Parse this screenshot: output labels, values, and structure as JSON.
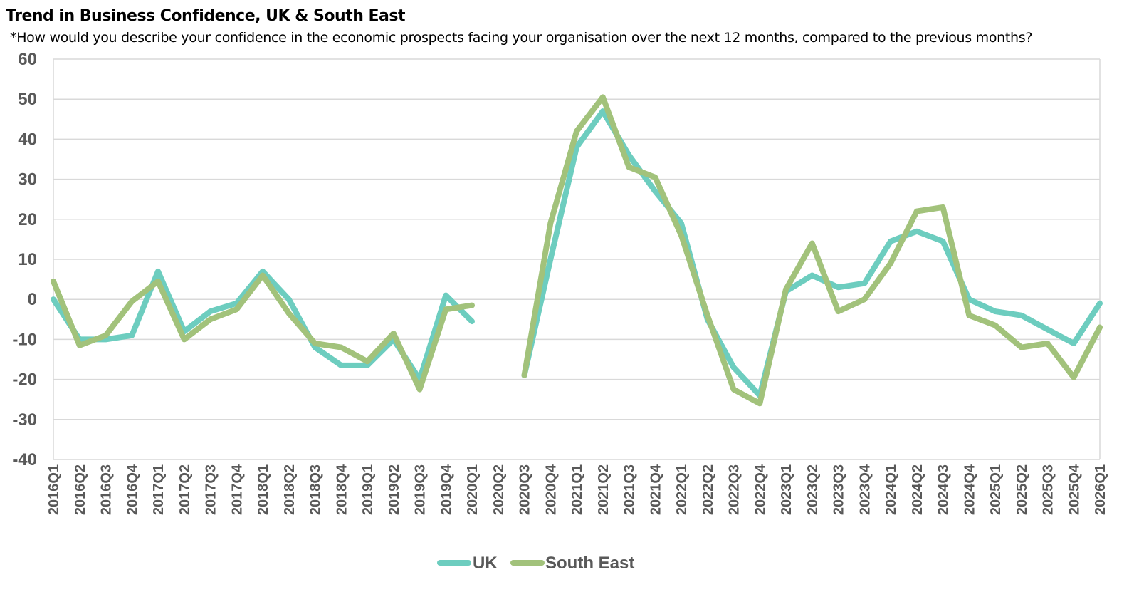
{
  "chart_data": {
    "type": "line",
    "title": "Trend in Business Confidence, UK & South East",
    "subtitle": "*How would you describe your confidence in the economic prospects facing your organisation over the next 12 months, compared to the previous months?",
    "xlabel": "",
    "ylabel": "",
    "ylim": [
      -40,
      60
    ],
    "yticks": [
      60,
      50,
      40,
      30,
      20,
      10,
      0,
      -10,
      -20,
      -30,
      -40
    ],
    "grid": true,
    "legend": "bottom-center",
    "categories": [
      "2016Q1",
      "2016Q2",
      "2016Q3",
      "2016Q4",
      "2017Q1",
      "2017Q2",
      "2017Q3",
      "2017Q4",
      "2018Q1",
      "2018Q2",
      "2018Q3",
      "2018Q4",
      "2019Q1",
      "2019Q2",
      "2019Q3",
      "2019Q4",
      "2020Q1",
      "2020Q2",
      "2020Q3",
      "2020Q4",
      "2021Q1",
      "2021Q2",
      "2021Q3",
      "2021Q4",
      "2022Q1",
      "2022Q2",
      "2022Q3",
      "2022Q4",
      "2023Q1",
      "2023Q2",
      "2023Q3",
      "2023Q4",
      "2024Q1",
      "2024Q2",
      "2024Q3",
      "2024Q4",
      "2025Q1",
      "2025Q2",
      "2025Q3",
      "2025Q4",
      "2026Q1"
    ],
    "series": [
      {
        "name": "UK",
        "color": "#6DCDBF",
        "values": [
          0,
          -10,
          -10,
          -9,
          7,
          -8,
          -3,
          -1,
          7,
          0,
          -12,
          -16.5,
          -16.5,
          -10,
          -20,
          1,
          -5.5,
          null,
          -19,
          10,
          38,
          47,
          36,
          27,
          19,
          -5,
          -17,
          -24,
          2,
          6,
          3,
          4,
          14.5,
          17,
          14.5,
          0,
          -3,
          -4,
          -7.5,
          -11,
          -1
        ]
      },
      {
        "name": "South East",
        "color": "#A2C27B",
        "values": [
          4.5,
          -11.5,
          -9,
          -0.5,
          4.5,
          -10,
          -5,
          -2.5,
          6,
          -3.5,
          -11,
          -12,
          -15.5,
          -8.5,
          -22.5,
          -2.5,
          -1.5,
          null,
          -19,
          19,
          42,
          50.5,
          33,
          30.5,
          16,
          -4,
          -22.5,
          -26,
          2.5,
          14,
          -3,
          0,
          9,
          22,
          23,
          -4,
          -6.5,
          -12,
          -11,
          -19.5,
          -7
        ]
      }
    ]
  }
}
